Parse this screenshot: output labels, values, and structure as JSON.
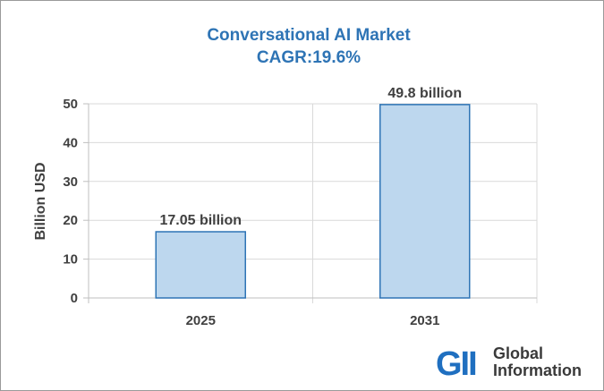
{
  "chart_data": {
    "type": "bar",
    "title": "Conversational AI Market",
    "subtitle": "CAGR:19.6%",
    "xlabel": "",
    "ylabel": "Billion USD",
    "categories": [
      "2025",
      "2031"
    ],
    "values": [
      17.05,
      49.8
    ],
    "data_labels": [
      "17.05 billion",
      "49.8 billion"
    ],
    "ylim": [
      0,
      50
    ],
    "yticks": [
      0,
      10,
      20,
      30,
      40,
      50
    ],
    "grid": true,
    "legend": "none",
    "bar_fill": "#bdd7ee",
    "bar_stroke": "#2e74b5"
  },
  "logo": {
    "mark": "GII",
    "line1": "Global",
    "line2": "Information",
    "color": "#1f6fc0"
  }
}
